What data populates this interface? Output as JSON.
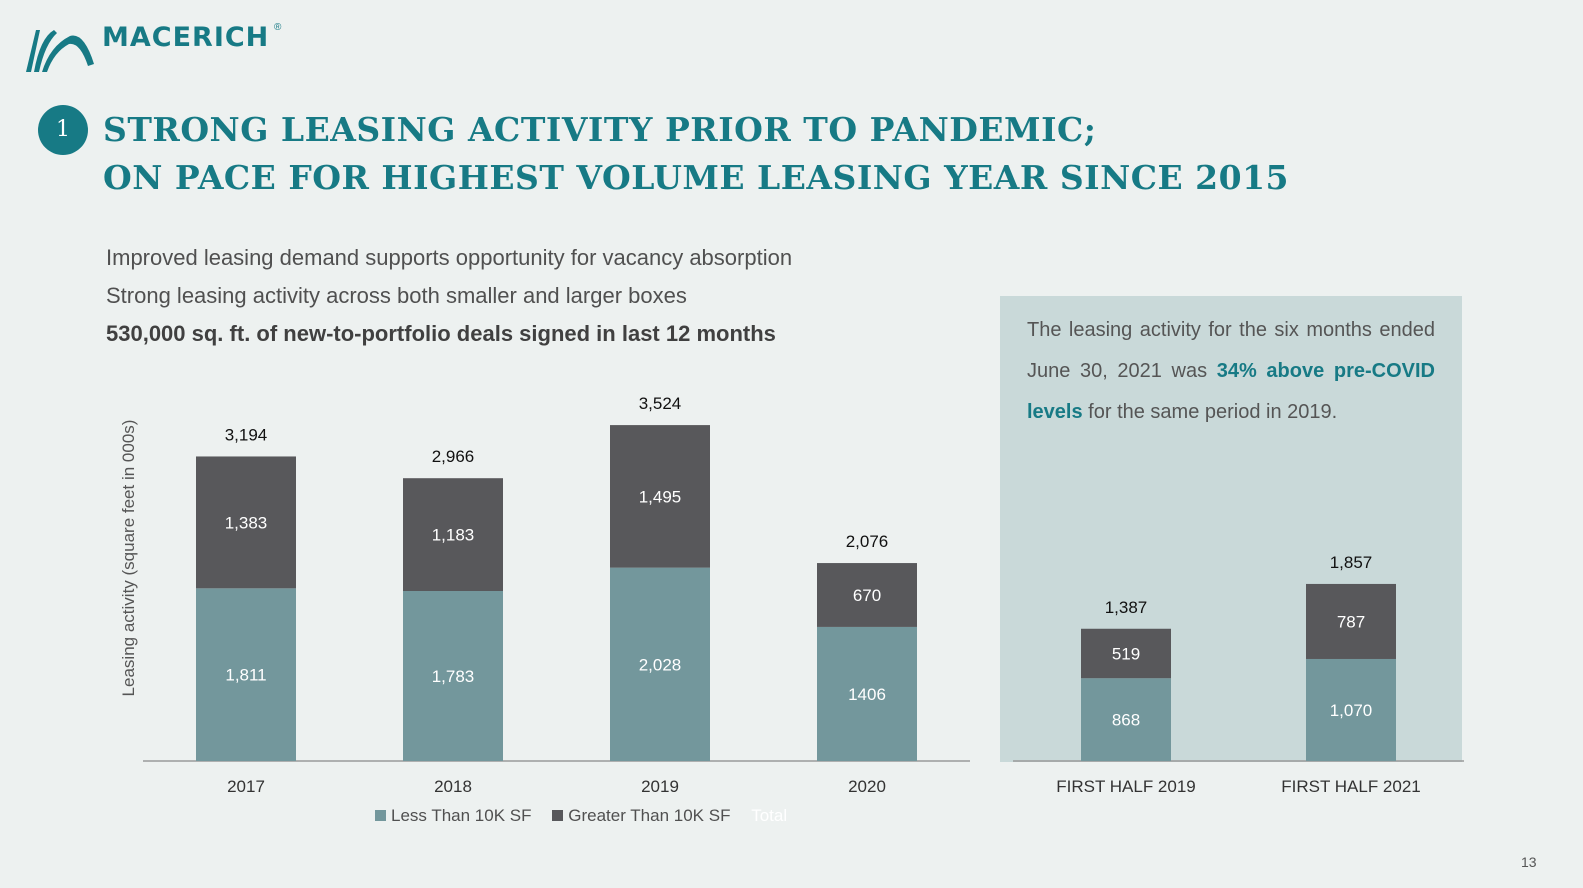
{
  "brand": {
    "name": "MACERICH",
    "registered": "®",
    "color": "#177a85"
  },
  "step_number": "1",
  "title_lines": [
    "STRONG LEASING ACTIVITY PRIOR TO PANDEMIC;",
    "ON PACE FOR HIGHEST VOLUME LEASING YEAR SINCE 2015"
  ],
  "bullets": [
    "Improved leasing demand supports opportunity for vacancy absorption",
    "Strong leasing activity across both smaller and larger boxes",
    "530,000 sq. ft. of new-to-portfolio deals signed in last 12 months"
  ],
  "callout": {
    "before": "The leasing activity for the six months ended June 30, 2021 was ",
    "highlight": "34% above pre-COVID levels",
    "after": " for the same period in 2019."
  },
  "legend": {
    "less": "Less Than 10K SF",
    "greater": "Greater Than 10K SF",
    "total": "Total"
  },
  "page_number": "13",
  "colors": {
    "less": "#73979c",
    "greater": "#58585b",
    "accent": "#177a85"
  },
  "chart_data": [
    {
      "type": "bar",
      "stacked": true,
      "ylabel": "Leasing activity (square feet in 000s)",
      "categories": [
        "2017",
        "2018",
        "2019",
        "2020"
      ],
      "series": [
        {
          "name": "Less Than 10K SF",
          "values": [
            1811,
            1783,
            2028,
            1406
          ],
          "labels": [
            "1,811",
            "1,783",
            "2,028",
            "1406"
          ]
        },
        {
          "name": "Greater Than 10K SF",
          "values": [
            1383,
            1183,
            1495,
            670
          ],
          "labels": [
            "1,383",
            "1,183",
            "1,495",
            "670"
          ]
        }
      ],
      "totals": [
        3194,
        2966,
        3524,
        2076
      ],
      "total_labels": [
        "3,194",
        "2,966",
        "3,524",
        "2,076"
      ],
      "ylim": [
        0,
        3524
      ]
    },
    {
      "type": "bar",
      "stacked": true,
      "categories": [
        "FIRST HALF 2019",
        "FIRST HALF 2021"
      ],
      "series": [
        {
          "name": "Less Than 10K SF",
          "values": [
            868,
            1070
          ],
          "labels": [
            "868",
            "1,070"
          ]
        },
        {
          "name": "Greater Than 10K SF",
          "values": [
            519,
            787
          ],
          "labels": [
            "519",
            "787"
          ]
        }
      ],
      "totals": [
        1387,
        1857
      ],
      "total_labels": [
        "1,387",
        "1,857"
      ],
      "ylim": [
        0,
        3524
      ]
    }
  ]
}
